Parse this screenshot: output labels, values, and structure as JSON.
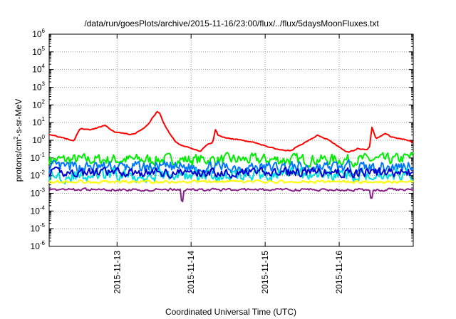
{
  "chart_data": {
    "type": "line",
    "title": "/data/run/goesPlots/archive/2015-11-16/23:00/flux/../flux/5daysMoonFluxes.txt",
    "xlabel": "Coordinated Universal Time (UTC)",
    "ylabel_parts": [
      "protons/cm",
      "2",
      "-s-sr-MeV"
    ],
    "x_range": [
      "2015-11-12T02:00",
      "2015-11-17T00:00"
    ],
    "x_ticks": [
      "2015-11-13",
      "2015-11-14",
      "2015-11-15",
      "2015-11-16"
    ],
    "y_scale": "log",
    "ylim": [
      1e-06,
      1000000.0
    ],
    "y_tick_exponents": [
      -6,
      -5,
      -4,
      -3,
      -2,
      -1,
      0,
      1,
      2,
      3,
      4,
      5,
      6
    ],
    "y_tick_base": "10",
    "grid": true,
    "legend": "none",
    "series": [
      {
        "color": "#ff0000",
        "style": "smooth",
        "noise": 0.05,
        "x": [
          "2015-11-12T02:00",
          "2015-11-12T06:00",
          "2015-11-12T10:00",
          "2015-11-12T12:00",
          "2015-11-12T16:00",
          "2015-11-12T20:00",
          "2015-11-12T23:00",
          "2015-11-13T02:00",
          "2015-11-13T04:00",
          "2015-11-13T06:00",
          "2015-11-13T08:00",
          "2015-11-13T10:00",
          "2015-11-13T12:00",
          "2015-11-13T13:00",
          "2015-11-13T14:00",
          "2015-11-13T15:00",
          "2015-11-13T17:00",
          "2015-11-13T19:00",
          "2015-11-13T21:00",
          "2015-11-14T00:00",
          "2015-11-14T03:00",
          "2015-11-14T05:00",
          "2015-11-14T07:00",
          "2015-11-14T08:00",
          "2015-11-14T08:30",
          "2015-11-14T10:00",
          "2015-11-14T13:00",
          "2015-11-14T16:00",
          "2015-11-14T20:00",
          "2015-11-15T00:00",
          "2015-11-15T04:00",
          "2015-11-15T08:00",
          "2015-11-15T12:00",
          "2015-11-15T14:00",
          "2015-11-15T17:00",
          "2015-11-15T20:00",
          "2015-11-16T00:00",
          "2015-11-16T03:00",
          "2015-11-16T06:00",
          "2015-11-16T09:00",
          "2015-11-16T10:00",
          "2015-11-16T10:30",
          "2015-11-16T12:00",
          "2015-11-16T15:00",
          "2015-11-16T17:00",
          "2015-11-16T20:00",
          "2015-11-17T00:00"
        ],
        "y": [
          2.2,
          1.5,
          1.0,
          4.5,
          4.0,
          7.0,
          3.0,
          2.5,
          2.0,
          2.5,
          4.0,
          8.0,
          25.0,
          40.0,
          30.0,
          10.0,
          2.5,
          0.8,
          0.5,
          0.35,
          0.25,
          0.5,
          0.8,
          5.0,
          2.0,
          1.5,
          1.2,
          1.0,
          0.8,
          0.5,
          0.3,
          0.25,
          0.6,
          1.0,
          2.0,
          1.2,
          0.4,
          0.2,
          0.35,
          0.3,
          0.5,
          6.0,
          1.2,
          2.5,
          1.5,
          1.2,
          0.8
        ]
      },
      {
        "color": "#00ee00",
        "style": "band",
        "base": 0.08,
        "noise": 0.45,
        "seed": 7,
        "x": [
          "2015-11-12T02:00",
          "2015-11-16T18:00",
          "2015-11-17T00:00"
        ],
        "y": [
          0.08,
          0.08,
          0.12
        ]
      },
      {
        "color": "#0077ff",
        "style": "band",
        "base": 0.03,
        "noise": 0.45,
        "seed": 13,
        "x": [
          "2015-11-12T02:00",
          "2015-11-16T18:00",
          "2015-11-17T00:00"
        ],
        "y": [
          0.03,
          0.03,
          0.045
        ]
      },
      {
        "color": "#00dddd",
        "style": "band",
        "base": 0.01,
        "noise": 0.5,
        "seed": 29,
        "x": [
          "2015-11-12T02:00",
          "2015-11-17T00:00"
        ],
        "y": [
          0.01,
          0.012
        ]
      },
      {
        "color": "#0000cc",
        "style": "band",
        "base": 0.015,
        "noise": 0.35,
        "seed": 41,
        "x": [
          "2015-11-12T02:00",
          "2015-11-17T00:00"
        ],
        "y": [
          0.015,
          0.015
        ]
      },
      {
        "color": "#ffff00",
        "style": "band",
        "base": 0.004,
        "noise": 0.12,
        "seed": 53,
        "x": [
          "2015-11-12T02:00",
          "2015-11-17T00:00"
        ],
        "y": [
          0.0045,
          0.0045
        ]
      },
      {
        "color": "#882288",
        "style": "band",
        "base": 0.0016,
        "noise": 0.1,
        "seed": 67,
        "dips": [
          [
            "2015-11-13T21:00",
            0.0004
          ],
          [
            "2015-11-16T10:30",
            0.0006
          ]
        ],
        "x": [
          "2015-11-12T02:00",
          "2015-11-17T00:00"
        ],
        "y": [
          0.0016,
          0.0016
        ]
      }
    ]
  }
}
